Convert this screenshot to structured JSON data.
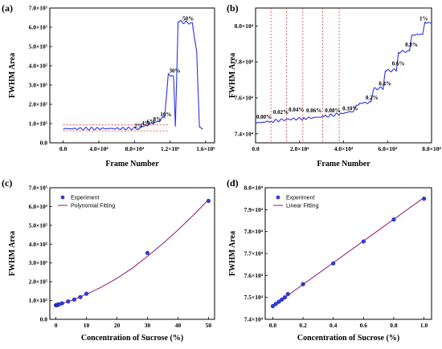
{
  "colors": {
    "trace": "#2a34e6",
    "fit": "#8b1a7a",
    "marker": "#2f3ae0",
    "guide": "#e03030"
  },
  "chart_data": [
    {
      "panel": "(a)",
      "type": "line",
      "xlabel": "Frame Number",
      "ylabel": "FWHM Area",
      "xlim": [
        -15000,
        170000
      ],
      "ylim": [
        0,
        700000
      ],
      "xticks": [
        0,
        40000,
        80000,
        120000,
        160000
      ],
      "xtick_labels": [
        "0.0",
        "4.0×10⁴",
        "8.0×10⁴",
        "1.2×10⁵",
        "1.6×10⁵"
      ],
      "yticks": [
        0,
        100000,
        200000,
        300000,
        400000,
        500000,
        600000,
        700000
      ],
      "ytick_labels": [
        "0.0",
        "1.0×10⁵",
        "2.0×10⁵",
        "3.0×10⁵",
        "4.0×10⁵",
        "5.0×10⁵",
        "6.0×10⁵",
        "7.0×10⁵"
      ],
      "series": [
        {
          "values": [
            [
              0,
              73000
            ],
            [
              83000,
              74500
            ],
            [
              86000,
              80000
            ],
            [
              91000,
              89000
            ],
            [
              96000,
              95000
            ],
            [
              101000,
              103000
            ],
            [
              107000,
              113000
            ],
            [
              114000,
              135000
            ],
            [
              118000,
              360000
            ],
            [
              124000,
              340000
            ],
            [
              126000,
              80000
            ],
            [
              129000,
              630000
            ],
            [
              145000,
              620000
            ],
            [
              150000,
              470000
            ],
            [
              153000,
              78000
            ],
            [
              157000,
              77000
            ]
          ]
        }
      ],
      "annotations": [
        {
          "text": "2%",
          "x": 80000,
          "y": 80000
        },
        {
          "text": "4%",
          "x": 88000,
          "y": 92000
        },
        {
          "text": "6%",
          "x": 94000,
          "y": 100000
        },
        {
          "text": "8%",
          "x": 101000,
          "y": 112000
        },
        {
          "text": "10%",
          "x": 109000,
          "y": 138000
        },
        {
          "text": "30%",
          "x": 119000,
          "y": 365000
        },
        {
          "text": "50%",
          "x": 134000,
          "y": 635000
        }
      ]
    },
    {
      "panel": "(b)",
      "type": "line",
      "xlabel": "Frame Number",
      "ylabel": "FWHM Area",
      "xlim": [
        0,
        80000
      ],
      "ylim": [
        73500,
        81000
      ],
      "xticks": [
        0,
        20000,
        40000,
        60000,
        80000
      ],
      "xtick_labels": [
        "0.0",
        "2.0×10⁴",
        "4.0×10⁴",
        "6.0×10⁴",
        "8.0×10⁴"
      ],
      "yticks": [
        74000,
        76000,
        78000,
        80000
      ],
      "ytick_labels": [
        "7.4×10⁴",
        "7.6×10⁴",
        "7.8×10⁴",
        "8.0×10⁴"
      ],
      "guides_x": [
        7000,
        14000,
        21500,
        30500,
        38000
      ],
      "series": [
        {
          "values": [
            [
              0,
              74600
            ],
            [
              7000,
              74700
            ],
            [
              14000,
              74800
            ],
            [
              21500,
              74850
            ],
            [
              30500,
              74950
            ],
            [
              38000,
              75100
            ],
            [
              44000,
              75250
            ],
            [
              47000,
              75700
            ],
            [
              52500,
              75750
            ],
            [
              53500,
              76500
            ],
            [
              58000,
              76550
            ],
            [
              59000,
              77500
            ],
            [
              64000,
              77550
            ],
            [
              65000,
              78550
            ],
            [
              70000,
              78600
            ],
            [
              71000,
              79500
            ],
            [
              76000,
              79550
            ],
            [
              77000,
              80150
            ],
            [
              80000,
              80200
            ]
          ]
        }
      ],
      "annotations": [
        {
          "text": "0.00%",
          "x": 300,
          "y": 74850
        },
        {
          "text": "0.02%",
          "x": 8000,
          "y": 75100
        },
        {
          "text": "0.04%",
          "x": 15000,
          "y": 75250
        },
        {
          "text": "0.06%",
          "x": 23000,
          "y": 75200
        },
        {
          "text": "0.08%",
          "x": 31500,
          "y": 75200
        },
        {
          "text": "0.10%",
          "x": 39500,
          "y": 75300
        },
        {
          "text": "0.2%",
          "x": 50000,
          "y": 75900
        },
        {
          "text": "0.4%",
          "x": 56000,
          "y": 76700
        },
        {
          "text": "0.6%",
          "x": 62000,
          "y": 77800
        },
        {
          "text": "0.8%",
          "x": 68000,
          "y": 78850
        },
        {
          "text": "1%",
          "x": 74500,
          "y": 80300
        }
      ]
    },
    {
      "panel": "(c)",
      "type": "scatter",
      "xlabel": "Concentration of Sucrose (%)",
      "ylabel": "FWHM Area",
      "xlim": [
        -2,
        52
      ],
      "ylim": [
        0,
        700000
      ],
      "xticks": [
        0,
        10,
        20,
        30,
        40,
        50
      ],
      "xtick_labels": [
        "0",
        "10",
        "20",
        "30",
        "40",
        "50"
      ],
      "yticks": [
        0,
        100000,
        200000,
        300000,
        400000,
        500000,
        600000,
        700000
      ],
      "ytick_labels": [
        "0.0",
        "1.0×10⁵",
        "2.0×10⁵",
        "3.0×10⁵",
        "4.0×10⁵",
        "5.0×10⁵",
        "6.0×10⁵",
        "7.0×10⁵"
      ],
      "legend": [
        "Experiment",
        "Polynomial Fitting"
      ],
      "legend_position": "top-left",
      "experiment": {
        "x": [
          0,
          0.2,
          0.4,
          0.6,
          0.8,
          1,
          2,
          4,
          6,
          8,
          10,
          30,
          50
        ],
        "y": [
          75000,
          75600,
          76500,
          77500,
          78500,
          79500,
          85000,
          95000,
          105000,
          118000,
          136000,
          353000,
          630000
        ]
      },
      "fit": {
        "x": [
          0,
          5,
          10,
          15,
          20,
          25,
          30,
          35,
          40,
          45,
          50
        ],
        "y": [
          74000,
          100000,
          133000,
          172000,
          218000,
          272000,
          335000,
          402000,
          475000,
          553000,
          636000
        ]
      }
    },
    {
      "panel": "(d)",
      "type": "scatter",
      "xlabel": "Concentration of Sucrose (%)",
      "ylabel": "FWHM Area",
      "xlim": [
        -0.05,
        1.05
      ],
      "ylim": [
        74000,
        80000
      ],
      "xticks": [
        0,
        0.2,
        0.4,
        0.6,
        0.8,
        1
      ],
      "xtick_labels": [
        "0.0",
        "0.2",
        "0.4",
        "0.6",
        "0.8",
        "1.0"
      ],
      "yticks": [
        74000,
        75000,
        76000,
        77000,
        78000,
        79000,
        80000
      ],
      "ytick_labels": [
        "7.4×10⁴",
        "7.5×10⁴",
        "7.6×10⁴",
        "7.7×10⁴",
        "7.8×10⁴",
        "7.9×10⁴",
        "8.0×10⁴"
      ],
      "legend": [
        "Experiment",
        "Linear Fitting"
      ],
      "legend_position": "top-left",
      "experiment": {
        "x": [
          0,
          0.02,
          0.04,
          0.06,
          0.08,
          0.1,
          0.2,
          0.4,
          0.6,
          0.8,
          1.0
        ],
        "y": [
          74600,
          74700,
          74800,
          74900,
          75000,
          75150,
          75600,
          76550,
          77550,
          78550,
          79500
        ]
      },
      "fit": {
        "x": [
          0,
          1.0
        ],
        "y": [
          74600,
          79550
        ]
      }
    }
  ]
}
